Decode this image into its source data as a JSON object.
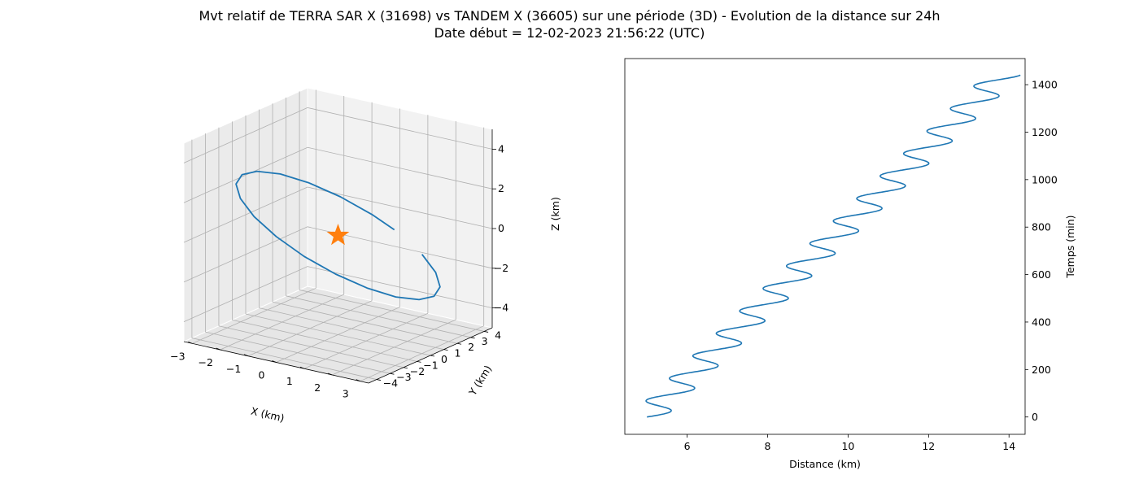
{
  "figure": {
    "title_line1": "Mvt relatif de TERRA SAR X (31698) vs TANDEM X (36605) sur une période (3D) - Evolution de la distance sur 24h",
    "title_line2": "Date début = 12-02-2023 21:56:22 (UTC)"
  },
  "colors": {
    "line": "#1f77b4",
    "marker": "#ff7f0e",
    "pane_back": "#f2f2f2",
    "pane_side": "#ebebeb",
    "pane_floor": "#e6e6e6",
    "grid": "#b0b0b0"
  },
  "chart_data": [
    {
      "type": "line3d",
      "xlabel": "X (km)",
      "ylabel": "Y (km)",
      "zlabel": "Z (km)",
      "xticks": [
        -3,
        -2,
        -1,
        0,
        1,
        2,
        3
      ],
      "yticks": [
        -4,
        -3,
        -2,
        -1,
        0,
        1,
        2,
        3,
        4
      ],
      "zticks": [
        -4,
        -2,
        0,
        2,
        4
      ],
      "xlim": [
        -3.3,
        3.3
      ],
      "ylim": [
        -4.6,
        4.6
      ],
      "zlim": [
        -5.0,
        5.0
      ],
      "grid": true,
      "marker": {
        "shape": "star",
        "x": 0,
        "y": 0,
        "z": 0
      },
      "series": [
        {
          "x": [
            3.0,
            2.85,
            2.43,
            1.76,
            0.93,
            0.0,
            -0.93,
            -1.76,
            -2.43,
            -2.85,
            -3.0,
            -2.85,
            -2.43,
            -1.76,
            -0.93,
            0.0,
            0.93,
            1.76,
            2.43,
            2.78
          ],
          "y": [
            0.0,
            1.33,
            2.53,
            3.48,
            4.09,
            4.3,
            4.09,
            3.48,
            2.53,
            1.33,
            0.0,
            -1.33,
            -2.53,
            -3.48,
            -4.09,
            -4.3,
            -4.09,
            -3.48,
            -2.53,
            -1.6
          ],
          "z": [
            0.0,
            -1.36,
            -2.59,
            -3.56,
            -4.18,
            -4.4,
            -4.18,
            -3.56,
            -2.59,
            -1.36,
            0.0,
            1.36,
            2.59,
            3.56,
            4.18,
            4.4,
            4.18,
            3.56,
            2.59,
            1.65
          ]
        }
      ]
    },
    {
      "type": "line",
      "xlabel": "Distance (km)",
      "ylabel": "Temps (min)",
      "xticks": [
        6,
        8,
        10,
        12,
        14
      ],
      "yticks": [
        0,
        200,
        400,
        600,
        800,
        1000,
        1200,
        1400
      ],
      "xlim": [
        4.45,
        14.4
      ],
      "ylim": [
        -73,
        1510
      ],
      "y_axis_side": "right",
      "series": [
        {
          "distance_start": 5.0,
          "distance_end": 13.85,
          "time_start": 0,
          "time_end": 1440,
          "oscillation_amplitude": 0.45,
          "oscillation_period_min": 94.7
        }
      ]
    }
  ]
}
